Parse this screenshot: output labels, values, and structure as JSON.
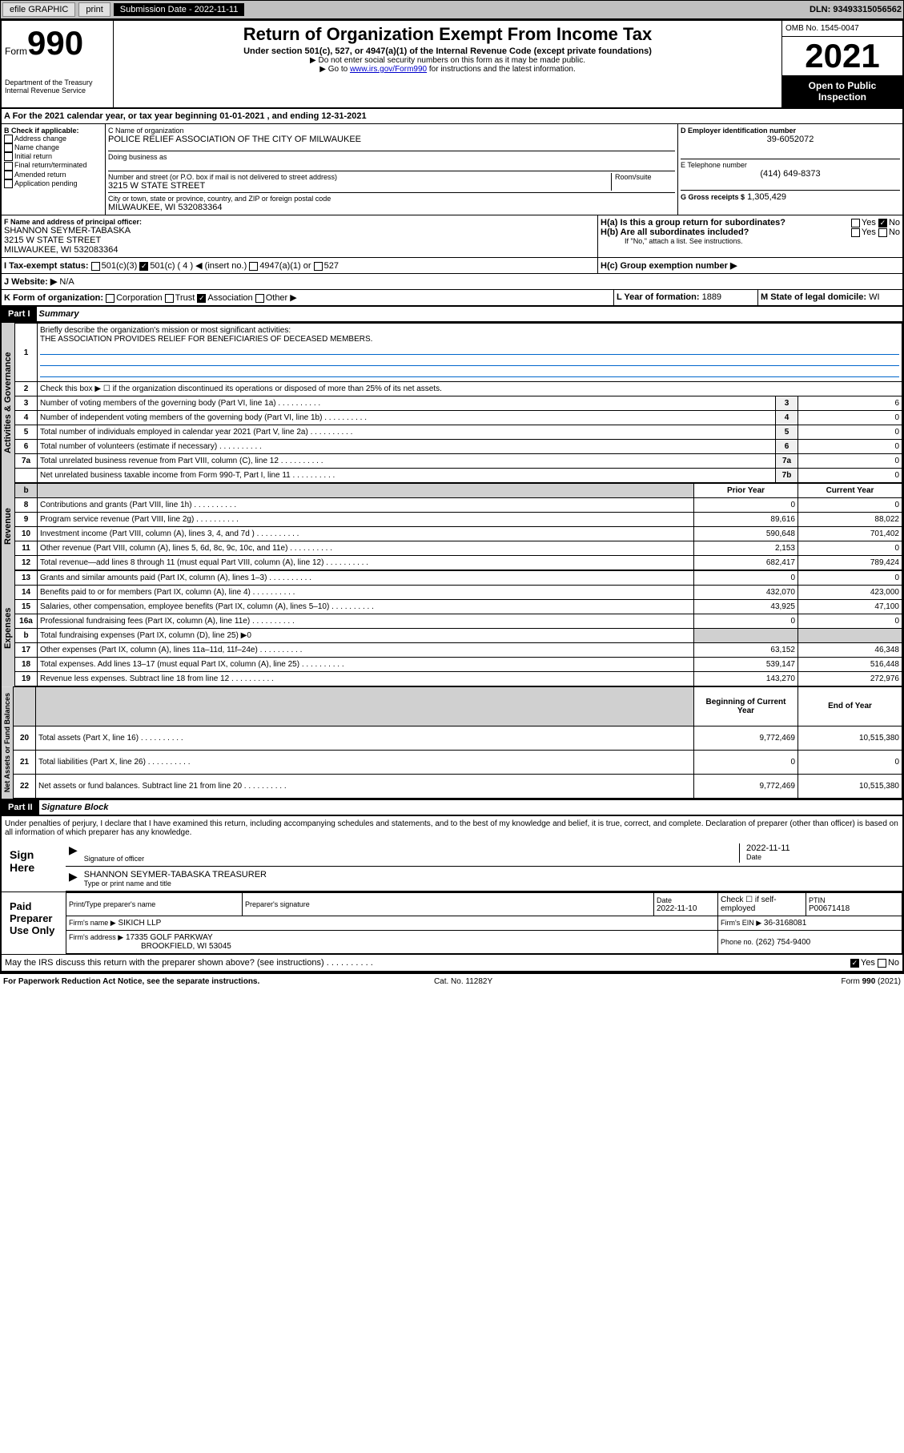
{
  "topbar": {
    "efile": "efile GRAPHIC",
    "print": "print",
    "sub_label": "Submission Date - 2022-11-11",
    "dln": "DLN: 93493315056562"
  },
  "header": {
    "form_text": "Form",
    "form_num": "990",
    "title": "Return of Organization Exempt From Income Tax",
    "sub1": "Under section 501(c), 527, or 4947(a)(1) of the Internal Revenue Code (except private foundations)",
    "sub2": "▶ Do not enter social security numbers on this form as it may be made public.",
    "sub3_pre": "▶ Go to ",
    "sub3_link": "www.irs.gov/Form990",
    "sub3_post": " for instructions and the latest information.",
    "dept": "Department of the Treasury\nInternal Revenue Service",
    "omb": "OMB No. 1545-0047",
    "year": "2021",
    "open": "Open to Public Inspection"
  },
  "sectionA": {
    "line": "A For the 2021 calendar year, or tax year beginning 01-01-2021    , and ending 12-31-2021",
    "b_label": "B Check if applicable:",
    "b_opts": [
      "Address change",
      "Name change",
      "Initial return",
      "Final return/terminated",
      "Amended return",
      "Application pending"
    ],
    "c_label": "C Name of organization",
    "c_name": "POLICE RELIEF ASSOCIATION OF THE CITY OF MILWAUKEE",
    "dba": "Doing business as",
    "addr_label": "Number and street (or P.O. box if mail is not delivered to street address)",
    "addr": "3215 W STATE STREET",
    "room": "Room/suite",
    "city_label": "City or town, state or province, country, and ZIP or foreign postal code",
    "city": "MILWAUKEE, WI  532083364",
    "d_label": "D Employer identification number",
    "d_val": "39-6052072",
    "e_label": "E Telephone number",
    "e_val": "(414) 649-8373",
    "g_label": "G Gross receipts $",
    "g_val": "1,305,429",
    "f_label": "F Name and address of principal officer:",
    "f_name": "SHANNON SEYMER-TABASKA",
    "f_addr": "3215 W STATE STREET\nMILWAUKEE, WI  532083364",
    "h_a": "H(a)  Is this a group return for subordinates?",
    "h_b": "H(b)  Are all subordinates included?",
    "h_note": "If \"No,\" attach a list. See instructions.",
    "h_c": "H(c)  Group exemption number ▶",
    "i_label": "I   Tax-exempt status:",
    "i_501c3": "501(c)(3)",
    "i_501c": "501(c) ( 4 ) ◀ (insert no.)",
    "i_4947": "4947(a)(1) or",
    "i_527": "527",
    "j_label": "J   Website: ▶",
    "j_val": "N/A",
    "k_label": "K Form of organization:",
    "k_opts": [
      "Corporation",
      "Trust",
      "Association",
      "Other ▶"
    ],
    "l_label": "L Year of formation:",
    "l_val": "1889",
    "m_label": "M State of legal domicile:",
    "m_val": "WI",
    "yes": "Yes",
    "no": "No"
  },
  "part1": {
    "hdr": "Part I",
    "title": "Summary",
    "q1": "Briefly describe the organization's mission or most significant activities:",
    "q1_ans": "THE ASSOCIATION PROVIDES RELIEF FOR BENEFICIARIES OF DECEASED MEMBERS.",
    "q2": "Check this box ▶ ☐  if the organization discontinued its operations or disposed of more than 25% of its net assets.",
    "rows_gov": [
      {
        "n": "3",
        "d": "Number of voting members of the governing body (Part VI, line 1a)",
        "c": "3",
        "v": "6"
      },
      {
        "n": "4",
        "d": "Number of independent voting members of the governing body (Part VI, line 1b)",
        "c": "4",
        "v": "0"
      },
      {
        "n": "5",
        "d": "Total number of individuals employed in calendar year 2021 (Part V, line 2a)",
        "c": "5",
        "v": "0"
      },
      {
        "n": "6",
        "d": "Total number of volunteers (estimate if necessary)",
        "c": "6",
        "v": "0"
      },
      {
        "n": "7a",
        "d": "Total unrelated business revenue from Part VIII, column (C), line 12",
        "c": "7a",
        "v": "0"
      },
      {
        "n": "",
        "d": "Net unrelated business taxable income from Form 990-T, Part I, line 11",
        "c": "7b",
        "v": "0"
      }
    ],
    "col_prior": "Prior Year",
    "col_curr": "Current Year",
    "rows_rev": [
      {
        "n": "8",
        "d": "Contributions and grants (Part VIII, line 1h)",
        "p": "0",
        "c": "0"
      },
      {
        "n": "9",
        "d": "Program service revenue (Part VIII, line 2g)",
        "p": "89,616",
        "c": "88,022"
      },
      {
        "n": "10",
        "d": "Investment income (Part VIII, column (A), lines 3, 4, and 7d )",
        "p": "590,648",
        "c": "701,402"
      },
      {
        "n": "11",
        "d": "Other revenue (Part VIII, column (A), lines 5, 6d, 8c, 9c, 10c, and 11e)",
        "p": "2,153",
        "c": "0"
      },
      {
        "n": "12",
        "d": "Total revenue—add lines 8 through 11 (must equal Part VIII, column (A), line 12)",
        "p": "682,417",
        "c": "789,424"
      }
    ],
    "rows_exp": [
      {
        "n": "13",
        "d": "Grants and similar amounts paid (Part IX, column (A), lines 1–3)",
        "p": "0",
        "c": "0"
      },
      {
        "n": "14",
        "d": "Benefits paid to or for members (Part IX, column (A), line 4)",
        "p": "432,070",
        "c": "423,000"
      },
      {
        "n": "15",
        "d": "Salaries, other compensation, employee benefits (Part IX, column (A), lines 5–10)",
        "p": "43,925",
        "c": "47,100"
      },
      {
        "n": "16a",
        "d": "Professional fundraising fees (Part IX, column (A), line 11e)",
        "p": "0",
        "c": "0"
      },
      {
        "n": "b",
        "d": "Total fundraising expenses (Part IX, column (D), line 25) ▶0",
        "p": "",
        "c": "",
        "shade": true
      },
      {
        "n": "17",
        "d": "Other expenses (Part IX, column (A), lines 11a–11d, 11f–24e)",
        "p": "63,152",
        "c": "46,348"
      },
      {
        "n": "18",
        "d": "Total expenses. Add lines 13–17 (must equal Part IX, column (A), line 25)",
        "p": "539,147",
        "c": "516,448"
      },
      {
        "n": "19",
        "d": "Revenue less expenses. Subtract line 18 from line 12",
        "p": "143,270",
        "c": "272,976"
      }
    ],
    "col_begin": "Beginning of Current Year",
    "col_end": "End of Year",
    "rows_net": [
      {
        "n": "20",
        "d": "Total assets (Part X, line 16)",
        "p": "9,772,469",
        "c": "10,515,380"
      },
      {
        "n": "21",
        "d": "Total liabilities (Part X, line 26)",
        "p": "0",
        "c": "0"
      },
      {
        "n": "22",
        "d": "Net assets or fund balances. Subtract line 21 from line 20",
        "p": "9,772,469",
        "c": "10,515,380"
      }
    ],
    "vl_gov": "Activities & Governance",
    "vl_rev": "Revenue",
    "vl_exp": "Expenses",
    "vl_net": "Net Assets or Fund Balances"
  },
  "part2": {
    "hdr": "Part II",
    "title": "Signature Block",
    "decl": "Under penalties of perjury, I declare that I have examined this return, including accompanying schedules and statements, and to the best of my knowledge and belief, it is true, correct, and complete. Declaration of preparer (other than officer) is based on all information of which preparer has any knowledge.",
    "sign_here": "Sign Here",
    "sig_officer": "Signature of officer",
    "sig_date": "2022-11-11",
    "date_lbl": "Date",
    "officer_name": "SHANNON SEYMER-TABASKA  TREASURER",
    "officer_lbl": "Type or print name and title",
    "paid": "Paid Preparer Use Only",
    "prep_name_lbl": "Print/Type preparer's name",
    "prep_sig_lbl": "Preparer's signature",
    "prep_date_lbl": "Date",
    "prep_date": "2022-11-10",
    "check_self": "Check ☐ if self-employed",
    "ptin_lbl": "PTIN",
    "ptin": "P00671418",
    "firm_name_lbl": "Firm's name   ▶",
    "firm_name": "SIKICH LLP",
    "firm_ein_lbl": "Firm's EIN ▶",
    "firm_ein": "36-3168081",
    "firm_addr_lbl": "Firm's address ▶",
    "firm_addr": "17335 GOLF PARKWAY",
    "firm_city": "BROOKFIELD, WI  53045",
    "phone_lbl": "Phone no.",
    "phone": "(262) 754-9400",
    "may_irs": "May the IRS discuss this return with the preparer shown above? (see instructions)"
  },
  "footer": {
    "pra": "For Paperwork Reduction Act Notice, see the separate instructions.",
    "cat": "Cat. No. 11282Y",
    "form": "Form 990 (2021)"
  }
}
